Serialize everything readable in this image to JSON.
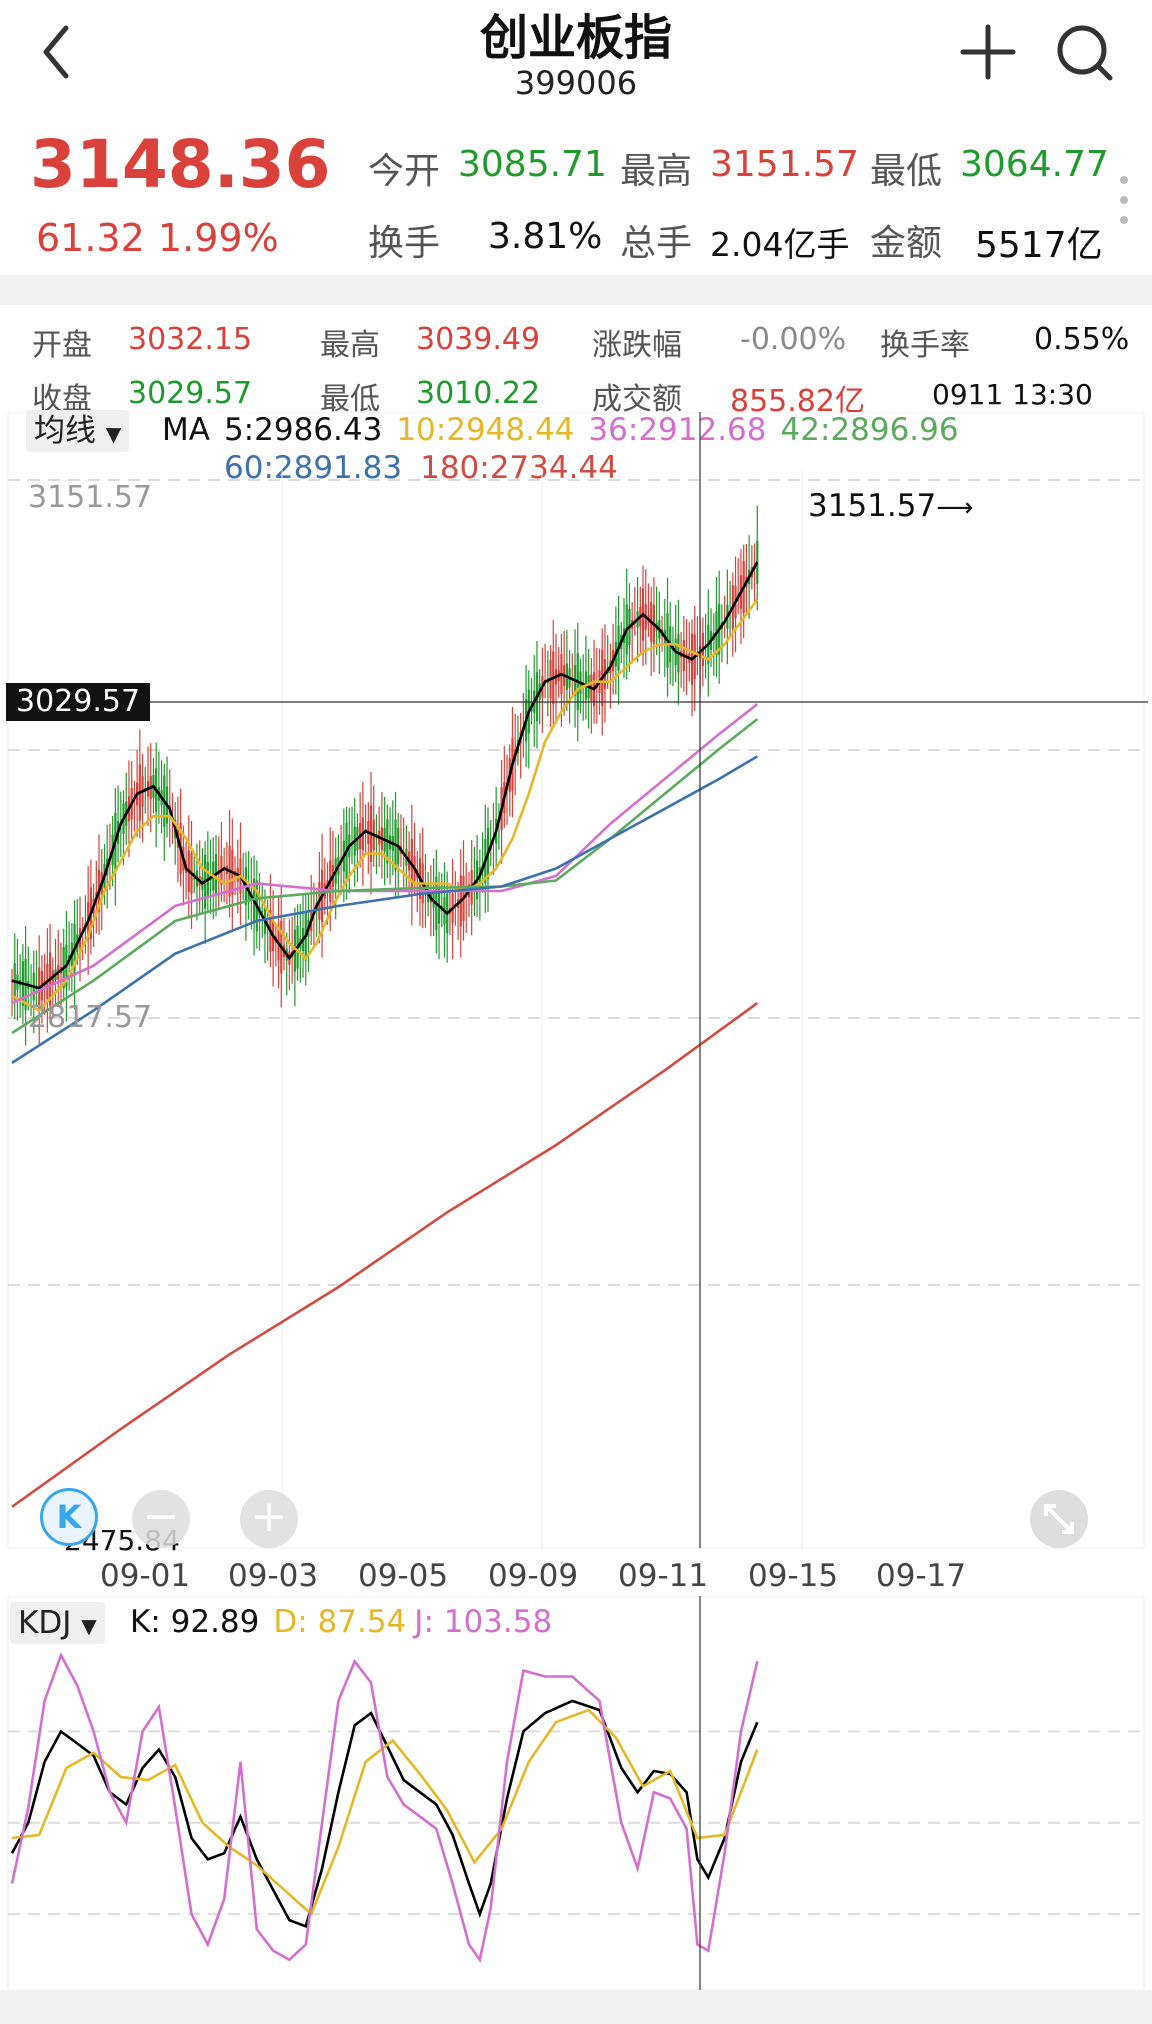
{
  "header": {
    "title": "创业板指",
    "code": "399006"
  },
  "quote": {
    "price": "3148.36",
    "change": "61.32",
    "change_pct": "1.99%",
    "open_label": "今开",
    "open": "3085.71",
    "high_label": "最高",
    "high": "3151.57",
    "low_label": "最低",
    "low": "3064.77",
    "turnover_label": "换手",
    "turnover": "3.81%",
    "volume_label": "总手",
    "volume": "2.04亿手",
    "amount_label": "金额",
    "amount": "5517亿"
  },
  "bar_info": {
    "open_label": "开盘",
    "open": "3032.15",
    "high_label": "最高",
    "high": "3039.49",
    "chg_label": "涨跌幅",
    "chg": "-0.00%",
    "turnover_label": "换手率",
    "turnover": "0.55%",
    "close_label": "收盘",
    "close": "3029.57",
    "low_label": "最低",
    "low": "3010.22",
    "amount_label": "成交额",
    "amount": "855.82亿",
    "time": "0911 13:30"
  },
  "ma_legend": {
    "selector": "均线",
    "ma": "MA",
    "ma5": "5:2986.43",
    "ma10": "10:2948.44",
    "ma36": "36:2912.68",
    "ma42": "42:2896.96",
    "ma60": "60:2891.83",
    "ma180": "180:2734.44"
  },
  "price_axis": {
    "top": "3151.57",
    "mid": "2817.57",
    "bottom": "2475.84",
    "max_marker": "3151.57",
    "crosshair": "3029.57"
  },
  "time_axis": [
    "09-01",
    "09-03",
    "09-05",
    "09-09",
    "09-11",
    "09-15",
    "09-17"
  ],
  "kdj_legend": {
    "selector": "KDJ",
    "k": "K: 92.89",
    "d": "D: 87.54",
    "j": "J: 103.58"
  },
  "colors": {
    "up": "#d9413a",
    "down": "#1f9a2c",
    "ma5": "#000000",
    "ma10": "#e6b826",
    "ma36": "#d46fd0",
    "ma42": "#5aab5e",
    "ma60": "#3d72ad",
    "ma180": "#d24b40",
    "k": "#000000",
    "d": "#e6b826",
    "j": "#d46fd0"
  },
  "icons": [
    "back-icon",
    "plus-icon",
    "search-icon",
    "more-icon",
    "k-logo-icon",
    "zoom-out-icon",
    "zoom-in-icon",
    "fullscreen-icon"
  ],
  "chart_data": {
    "type": "candlestick",
    "ylim": [
      2475.84,
      3151.57
    ],
    "ma_series": [
      {
        "name": "5",
        "points": [
          [
            0,
            2830
          ],
          [
            10,
            2825
          ],
          [
            20,
            2840
          ],
          [
            28,
            2870
          ],
          [
            34,
            2900
          ],
          [
            40,
            2935
          ],
          [
            46,
            2955
          ],
          [
            52,
            2960
          ],
          [
            58,
            2945
          ],
          [
            64,
            2905
          ],
          [
            70,
            2895
          ],
          [
            78,
            2905
          ],
          [
            84,
            2900
          ],
          [
            90,
            2880
          ],
          [
            96,
            2860
          ],
          [
            102,
            2845
          ],
          [
            108,
            2860
          ],
          [
            112,
            2880
          ],
          [
            118,
            2900
          ],
          [
            124,
            2920
          ],
          [
            130,
            2930
          ],
          [
            136,
            2925
          ],
          [
            142,
            2920
          ],
          [
            148,
            2905
          ],
          [
            154,
            2885
          ],
          [
            160,
            2875
          ],
          [
            166,
            2885
          ],
          [
            172,
            2900
          ],
          [
            178,
            2930
          ],
          [
            184,
            2975
          ],
          [
            190,
            3010
          ],
          [
            196,
            3030
          ],
          [
            202,
            3035
          ],
          [
            208,
            3030
          ],
          [
            214,
            3025
          ],
          [
            220,
            3040
          ],
          [
            226,
            3065
          ],
          [
            232,
            3075
          ],
          [
            238,
            3065
          ],
          [
            244,
            3050
          ],
          [
            250,
            3045
          ],
          [
            256,
            3055
          ],
          [
            262,
            3070
          ],
          [
            268,
            3090
          ],
          [
            274,
            3110
          ]
        ]
      },
      {
        "name": "10",
        "points": [
          [
            0,
            2820
          ],
          [
            10,
            2810
          ],
          [
            20,
            2830
          ],
          [
            28,
            2860
          ],
          [
            34,
            2890
          ],
          [
            40,
            2910
          ],
          [
            46,
            2930
          ],
          [
            52,
            2940
          ],
          [
            58,
            2940
          ],
          [
            64,
            2925
          ],
          [
            70,
            2905
          ],
          [
            78,
            2895
          ],
          [
            84,
            2900
          ],
          [
            90,
            2890
          ],
          [
            96,
            2870
          ],
          [
            102,
            2855
          ],
          [
            108,
            2845
          ],
          [
            112,
            2855
          ],
          [
            118,
            2880
          ],
          [
            124,
            2900
          ],
          [
            130,
            2915
          ],
          [
            136,
            2915
          ],
          [
            142,
            2905
          ],
          [
            148,
            2895
          ],
          [
            154,
            2895
          ],
          [
            160,
            2895
          ],
          [
            166,
            2890
          ],
          [
            172,
            2895
          ],
          [
            178,
            2905
          ],
          [
            184,
            2925
          ],
          [
            190,
            2955
          ],
          [
            196,
            2990
          ],
          [
            202,
            3010
          ],
          [
            208,
            3025
          ],
          [
            214,
            3030
          ],
          [
            220,
            3030
          ],
          [
            226,
            3040
          ],
          [
            232,
            3050
          ],
          [
            238,
            3055
          ],
          [
            244,
            3055
          ],
          [
            250,
            3050
          ],
          [
            256,
            3045
          ],
          [
            262,
            3055
          ],
          [
            268,
            3070
          ],
          [
            274,
            3085
          ]
        ]
      },
      {
        "name": "36",
        "points": [
          [
            0,
            2815
          ],
          [
            30,
            2840
          ],
          [
            60,
            2880
          ],
          [
            90,
            2895
          ],
          [
            120,
            2890
          ],
          [
            150,
            2890
          ],
          [
            180,
            2890
          ],
          [
            200,
            2900
          ],
          [
            220,
            2935
          ],
          [
            240,
            2965
          ],
          [
            260,
            2995
          ],
          [
            274,
            3015
          ]
        ]
      },
      {
        "name": "42",
        "points": [
          [
            0,
            2795
          ],
          [
            30,
            2830
          ],
          [
            60,
            2870
          ],
          [
            90,
            2885
          ],
          [
            120,
            2890
          ],
          [
            150,
            2892
          ],
          [
            180,
            2893
          ],
          [
            200,
            2897
          ],
          [
            220,
            2925
          ],
          [
            240,
            2955
          ],
          [
            260,
            2985
          ],
          [
            274,
            3005
          ]
        ]
      },
      {
        "name": "60",
        "points": [
          [
            0,
            2775
          ],
          [
            30,
            2810
          ],
          [
            60,
            2848
          ],
          [
            90,
            2870
          ],
          [
            120,
            2880
          ],
          [
            150,
            2888
          ],
          [
            180,
            2893
          ],
          [
            200,
            2905
          ],
          [
            220,
            2925
          ],
          [
            240,
            2945
          ],
          [
            260,
            2965
          ],
          [
            274,
            2980
          ]
        ]
      },
      {
        "name": "180",
        "points": [
          [
            0,
            2478
          ],
          [
            40,
            2530
          ],
          [
            80,
            2580
          ],
          [
            120,
            2625
          ],
          [
            160,
            2675
          ],
          [
            200,
            2720
          ],
          [
            240,
            2770
          ],
          [
            274,
            2815
          ]
        ]
      }
    ],
    "kdj": {
      "ylim": [
        0,
        110
      ],
      "series": [
        {
          "name": "K",
          "points": [
            [
              0,
              40
            ],
            [
              6,
              50
            ],
            [
              12,
              70
            ],
            [
              18,
              80
            ],
            [
              24,
              76
            ],
            [
              30,
              72
            ],
            [
              36,
              60
            ],
            [
              42,
              56
            ],
            [
              48,
              68
            ],
            [
              54,
              74
            ],
            [
              60,
              65
            ],
            [
              66,
              45
            ],
            [
              72,
              38
            ],
            [
              78,
              40
            ],
            [
              84,
              52
            ],
            [
              90,
              38
            ],
            [
              96,
              28
            ],
            [
              102,
              18
            ],
            [
              108,
              16
            ],
            [
              114,
              35
            ],
            [
              120,
              60
            ],
            [
              126,
              82
            ],
            [
              132,
              86
            ],
            [
              138,
              75
            ],
            [
              144,
              64
            ],
            [
              150,
              60
            ],
            [
              156,
              56
            ],
            [
              162,
              46
            ],
            [
              168,
              30
            ],
            [
              172,
              20
            ],
            [
              176,
              30
            ],
            [
              182,
              58
            ],
            [
              188,
              80
            ],
            [
              196,
              86
            ],
            [
              206,
              90
            ],
            [
              216,
              87
            ],
            [
              224,
              68
            ],
            [
              230,
              60
            ],
            [
              236,
              67
            ],
            [
              242,
              66
            ],
            [
              248,
              60
            ],
            [
              252,
              38
            ],
            [
              256,
              32
            ],
            [
              262,
              45
            ],
            [
              268,
              70
            ],
            [
              274,
              83
            ]
          ]
        },
        {
          "name": "D",
          "points": [
            [
              0,
              45
            ],
            [
              10,
              46
            ],
            [
              20,
              68
            ],
            [
              30,
              73
            ],
            [
              40,
              65
            ],
            [
              50,
              64
            ],
            [
              60,
              69
            ],
            [
              70,
              50
            ],
            [
              80,
              42
            ],
            [
              90,
              36
            ],
            [
              100,
              28
            ],
            [
              110,
              20
            ],
            [
              120,
              42
            ],
            [
              130,
              70
            ],
            [
              140,
              77
            ],
            [
              150,
              66
            ],
            [
              160,
              54
            ],
            [
              170,
              37
            ],
            [
              180,
              48
            ],
            [
              190,
              70
            ],
            [
              200,
              83
            ],
            [
              212,
              87
            ],
            [
              222,
              78
            ],
            [
              232,
              62
            ],
            [
              242,
              67
            ],
            [
              252,
              45
            ],
            [
              262,
              46
            ],
            [
              274,
              74
            ]
          ]
        },
        {
          "name": "J",
          "points": [
            [
              0,
              30
            ],
            [
              6,
              55
            ],
            [
              12,
              90
            ],
            [
              18,
              105
            ],
            [
              24,
              95
            ],
            [
              30,
              80
            ],
            [
              36,
              60
            ],
            [
              42,
              50
            ],
            [
              48,
              80
            ],
            [
              54,
              88
            ],
            [
              60,
              55
            ],
            [
              66,
              20
            ],
            [
              72,
              10
            ],
            [
              78,
              25
            ],
            [
              84,
              70
            ],
            [
              90,
              15
            ],
            [
              96,
              8
            ],
            [
              102,
              5
            ],
            [
              108,
              10
            ],
            [
              114,
              50
            ],
            [
              120,
              90
            ],
            [
              126,
              103
            ],
            [
              132,
              96
            ],
            [
              138,
              65
            ],
            [
              144,
              56
            ],
            [
              150,
              52
            ],
            [
              156,
              48
            ],
            [
              162,
              30
            ],
            [
              168,
              10
            ],
            [
              172,
              5
            ],
            [
              176,
              22
            ],
            [
              182,
              70
            ],
            [
              188,
              100
            ],
            [
              196,
              98
            ],
            [
              206,
              98
            ],
            [
              216,
              90
            ],
            [
              224,
              50
            ],
            [
              230,
              35
            ],
            [
              236,
              60
            ],
            [
              242,
              58
            ],
            [
              248,
              48
            ],
            [
              252,
              10
            ],
            [
              256,
              8
            ],
            [
              262,
              40
            ],
            [
              268,
              80
            ],
            [
              274,
              103
            ]
          ]
        }
      ]
    }
  }
}
